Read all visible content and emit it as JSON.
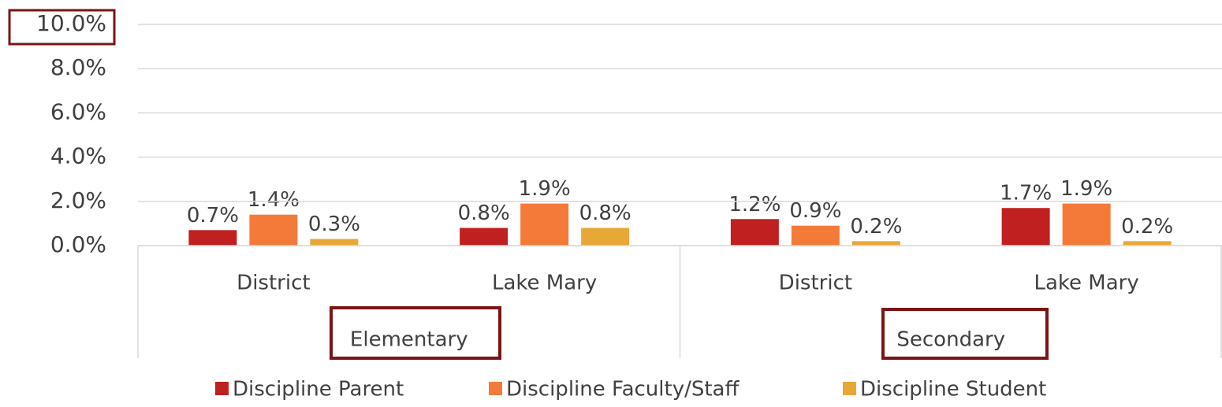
{
  "chart_data": {
    "type": "bar",
    "categories": [
      "District",
      "Lake Mary",
      "District",
      "Lake Mary"
    ],
    "groups": [
      "Elementary",
      "Secondary"
    ],
    "series": [
      {
        "name": "Discipline Parent",
        "color": "#c0201f",
        "values": [
          0.7,
          0.8,
          1.2,
          1.7
        ],
        "value_labels": [
          "0.7%",
          "0.8%",
          "1.2%",
          "1.7%"
        ]
      },
      {
        "name": "Discipline Faculty/Staff",
        "color": "#f47a3a",
        "values": [
          1.4,
          1.9,
          0.9,
          1.9
        ],
        "value_labels": [
          "1.4%",
          "1.9%",
          "0.9%",
          "1.9%"
        ]
      },
      {
        "name": "Discipline Student",
        "color": "#e8a838",
        "values": [
          0.3,
          0.8,
          0.2,
          0.2
        ],
        "value_labels": [
          "0.3%",
          "0.8%",
          "0.2%",
          "0.2%"
        ]
      }
    ],
    "ylim": [
      0,
      10
    ],
    "yticks": [
      {
        "value": 0,
        "label": "0.0%"
      },
      {
        "value": 2,
        "label": "2.0%"
      },
      {
        "value": 4,
        "label": "4.0%"
      },
      {
        "value": 6,
        "label": "6.0%"
      },
      {
        "value": 8,
        "label": "8.0%"
      },
      {
        "value": 10,
        "label": "10.0%"
      }
    ],
    "grid": true,
    "legend": "bottom"
  }
}
